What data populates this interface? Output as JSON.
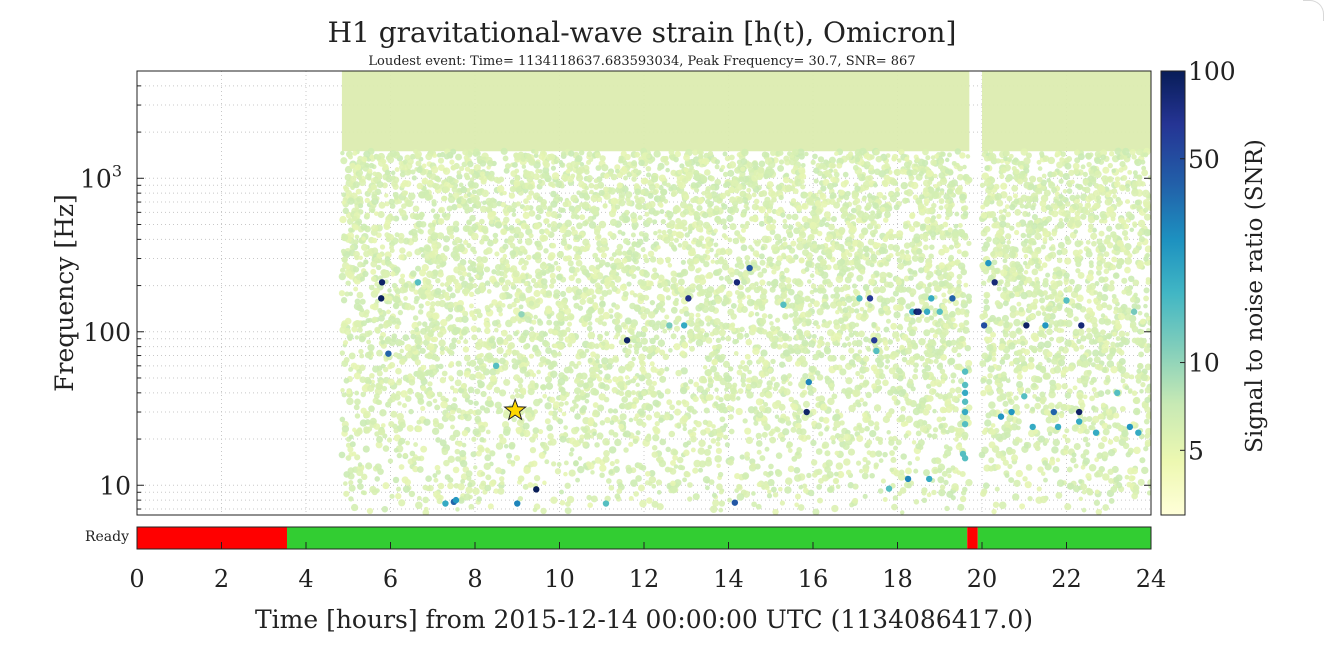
{
  "chart_data": {
    "type": "scatter",
    "title": "H1 gravitational-wave strain [h(t), Omicron]",
    "subtitle": "Loudest event: Time= 1134118637.683593034, Peak Frequency= 30.7, SNR= 867",
    "xlabel": "Time [hours] from 2015-12-14 00:00:00 UTC (1134086417.0)",
    "ylabel": "Frequency [Hz]",
    "x_range": [
      0,
      24
    ],
    "y_range": [
      6.4,
      5000
    ],
    "y_scale": "log",
    "x_ticks": [
      0,
      2,
      4,
      6,
      8,
      10,
      12,
      14,
      16,
      18,
      20,
      22,
      24
    ],
    "y_ticks": [
      {
        "value": 10,
        "label": "10"
      },
      {
        "value": 100,
        "label": "100"
      },
      {
        "value": 1000,
        "label": "10³"
      }
    ],
    "grid": true,
    "colorbar": {
      "label": "Signal to noise ratio (SNR)",
      "scale": "log",
      "range": [
        3,
        100
      ],
      "ticks": [
        5,
        10,
        50,
        100
      ],
      "colormap": [
        "#ffffd9",
        "#edf8b1",
        "#c7e9b4",
        "#7fcdbb",
        "#41b6c4",
        "#1d91c0",
        "#225ea8",
        "#253494",
        "#081d58"
      ]
    },
    "loudest_event": {
      "time_hours": 8.95,
      "frequency": 30.7,
      "snr": 867,
      "marker": "star",
      "color": "#ffd700"
    },
    "coverage": {
      "intervals": [
        [
          4.85,
          19.7
        ],
        [
          20.0,
          24.0
        ]
      ],
      "typical_snr": 5,
      "background_color": "#dcecb0"
    },
    "high_snr_events": [
      {
        "t": 5.8,
        "f": 210,
        "snr": 90
      },
      {
        "t": 5.78,
        "f": 165,
        "snr": 95
      },
      {
        "t": 5.95,
        "f": 72,
        "snr": 40
      },
      {
        "t": 6.65,
        "f": 210,
        "snr": 15
      },
      {
        "t": 7.5,
        "f": 7.8,
        "snr": 40
      },
      {
        "t": 7.55,
        "f": 8.0,
        "snr": 25
      },
      {
        "t": 7.3,
        "f": 7.6,
        "snr": 20
      },
      {
        "t": 8.5,
        "f": 60,
        "snr": 15
      },
      {
        "t": 9.0,
        "f": 7.6,
        "snr": 30
      },
      {
        "t": 9.45,
        "f": 9.4,
        "snr": 100
      },
      {
        "t": 9.1,
        "f": 130,
        "snr": 10
      },
      {
        "t": 11.1,
        "f": 7.6,
        "snr": 15
      },
      {
        "t": 11.6,
        "f": 88,
        "snr": 90
      },
      {
        "t": 12.6,
        "f": 110,
        "snr": 12
      },
      {
        "t": 12.95,
        "f": 110,
        "snr": 20
      },
      {
        "t": 13.05,
        "f": 165,
        "snr": 70
      },
      {
        "t": 14.15,
        "f": 7.7,
        "snr": 45
      },
      {
        "t": 14.2,
        "f": 210,
        "snr": 80
      },
      {
        "t": 14.5,
        "f": 260,
        "snr": 45
      },
      {
        "t": 15.3,
        "f": 150,
        "snr": 15
      },
      {
        "t": 15.9,
        "f": 47,
        "snr": 30
      },
      {
        "t": 15.85,
        "f": 30,
        "snr": 90
      },
      {
        "t": 17.1,
        "f": 165,
        "snr": 15
      },
      {
        "t": 17.35,
        "f": 165,
        "snr": 60
      },
      {
        "t": 17.45,
        "f": 88,
        "snr": 60
      },
      {
        "t": 17.5,
        "f": 75,
        "snr": 15
      },
      {
        "t": 18.35,
        "f": 135,
        "snr": 20
      },
      {
        "t": 18.45,
        "f": 135,
        "snr": 90
      },
      {
        "t": 18.5,
        "f": 135,
        "snr": 80
      },
      {
        "t": 18.7,
        "f": 135,
        "snr": 20
      },
      {
        "t": 19.0,
        "f": 135,
        "snr": 15
      },
      {
        "t": 18.8,
        "f": 165,
        "snr": 20
      },
      {
        "t": 19.3,
        "f": 165,
        "snr": 40
      },
      {
        "t": 18.25,
        "f": 11,
        "snr": 30
      },
      {
        "t": 18.75,
        "f": 11,
        "snr": 20
      },
      {
        "t": 17.8,
        "f": 9.5,
        "snr": 15
      },
      {
        "t": 19.6,
        "f": 55,
        "snr": 15
      },
      {
        "t": 19.6,
        "f": 45,
        "snr": 15
      },
      {
        "t": 19.6,
        "f": 40,
        "snr": 20
      },
      {
        "t": 19.6,
        "f": 35,
        "snr": 15
      },
      {
        "t": 19.6,
        "f": 30,
        "snr": 20
      },
      {
        "t": 19.6,
        "f": 25,
        "snr": 15
      },
      {
        "t": 19.55,
        "f": 16,
        "snr": 15
      },
      {
        "t": 19.6,
        "f": 15,
        "snr": 15
      },
      {
        "t": 20.15,
        "f": 280,
        "snr": 25
      },
      {
        "t": 20.05,
        "f": 110,
        "snr": 50
      },
      {
        "t": 20.3,
        "f": 210,
        "snr": 80
      },
      {
        "t": 20.45,
        "f": 28,
        "snr": 25
      },
      {
        "t": 20.7,
        "f": 30,
        "snr": 25
      },
      {
        "t": 21.0,
        "f": 38,
        "snr": 15
      },
      {
        "t": 21.05,
        "f": 110,
        "snr": 90
      },
      {
        "t": 21.2,
        "f": 24,
        "snr": 20
      },
      {
        "t": 21.5,
        "f": 110,
        "snr": 25
      },
      {
        "t": 21.7,
        "f": 30,
        "snr": 40
      },
      {
        "t": 21.8,
        "f": 24,
        "snr": 20
      },
      {
        "t": 22.0,
        "f": 160,
        "snr": 15
      },
      {
        "t": 22.3,
        "f": 30,
        "snr": 90
      },
      {
        "t": 22.35,
        "f": 110,
        "snr": 80
      },
      {
        "t": 22.3,
        "f": 26,
        "snr": 20
      },
      {
        "t": 22.7,
        "f": 22,
        "snr": 20
      },
      {
        "t": 23.5,
        "f": 24,
        "snr": 25
      },
      {
        "t": 23.7,
        "f": 22,
        "snr": 20
      },
      {
        "t": 23.2,
        "f": 40,
        "snr": 15
      },
      {
        "t": 23.6,
        "f": 135,
        "snr": 12
      }
    ]
  },
  "segments": {
    "label": "Ready",
    "bands": [
      {
        "start": 0,
        "end": 3.55,
        "state": "off",
        "color": "#ff0000"
      },
      {
        "start": 3.55,
        "end": 19.65,
        "state": "on",
        "color": "#32cd32"
      },
      {
        "start": 19.65,
        "end": 19.9,
        "state": "off",
        "color": "#ff0000"
      },
      {
        "start": 19.9,
        "end": 24,
        "state": "on",
        "color": "#32cd32"
      }
    ]
  }
}
